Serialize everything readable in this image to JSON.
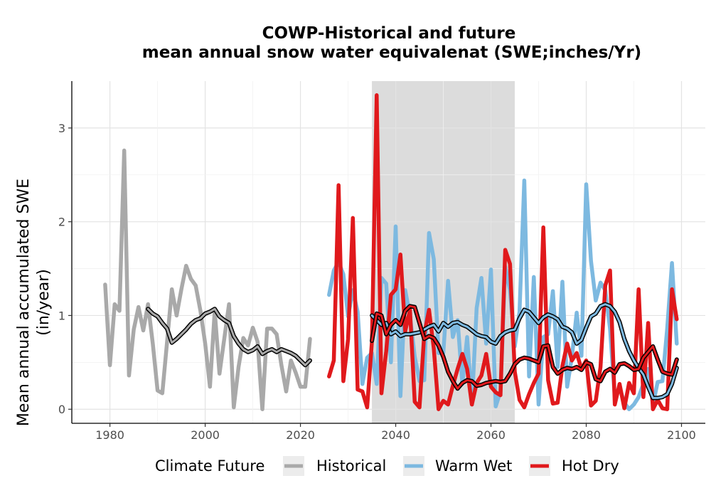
{
  "chart_data": {
    "type": "line",
    "title_line1": "COWP-Historical and future",
    "title_line2": "mean annual snow water equivalenat (SWE;inches/Yr)",
    "ylabel_line1": "Mean annual accumulated SWE",
    "ylabel_line2": "(in/year)",
    "xlim": [
      1972,
      2105
    ],
    "ylim": [
      -0.15,
      3.5
    ],
    "xticks": [
      1980,
      2000,
      2020,
      2040,
      2060,
      2080,
      2100
    ],
    "yticks": [
      0,
      1,
      2,
      3
    ],
    "grid": true,
    "shaded_period": [
      2035,
      2065
    ],
    "shade_color": "#dcdcdc",
    "legend": {
      "title": "Climate Future",
      "position": "bottom",
      "entries": [
        "Historical",
        "Warm Wet",
        "Hot Dry"
      ]
    },
    "series": [
      {
        "name": "Historical",
        "color": "#a9a9a9",
        "x": [
          1979,
          1980,
          1981,
          1982,
          1983,
          1984,
          1985,
          1986,
          1987,
          1988,
          1989,
          1990,
          1991,
          1992,
          1993,
          1994,
          1995,
          1996,
          1997,
          1998,
          1999,
          2000,
          2001,
          2002,
          2003,
          2004,
          2005,
          2006,
          2007,
          2008,
          2009,
          2010,
          2011,
          2012,
          2013,
          2014,
          2015,
          2016,
          2017,
          2018,
          2019,
          2020,
          2021,
          2022
        ],
        "values": [
          1.33,
          0.47,
          1.12,
          1.05,
          2.76,
          0.36,
          0.85,
          1.09,
          0.84,
          1.12,
          0.7,
          0.2,
          0.17,
          0.72,
          1.28,
          1.0,
          1.28,
          1.53,
          1.39,
          1.32,
          1.05,
          0.7,
          0.24,
          1.05,
          0.38,
          0.75,
          1.12,
          0.02,
          0.45,
          0.76,
          0.68,
          0.87,
          0.72,
          0.0,
          0.86,
          0.86,
          0.8,
          0.47,
          0.19,
          0.52,
          0.39,
          0.24,
          0.24,
          0.75
        ]
      },
      {
        "name": "Historical smooth",
        "color": "#a9a9a9",
        "x": [
          1988,
          1989,
          1990,
          1991,
          1992,
          1993,
          1994,
          1995,
          1996,
          1997,
          1998,
          1999,
          2000,
          2001,
          2002,
          2003,
          2004,
          2005,
          2006,
          2007,
          2008,
          2009,
          2010,
          2011,
          2012,
          2013,
          2014,
          2015,
          2016,
          2017,
          2018,
          2019,
          2020,
          2021,
          2022
        ],
        "values": [
          1.07,
          1.02,
          0.99,
          0.92,
          0.86,
          0.71,
          0.75,
          0.8,
          0.85,
          0.91,
          0.95,
          0.97,
          1.02,
          1.04,
          1.07,
          0.99,
          0.95,
          0.92,
          0.78,
          0.7,
          0.64,
          0.61,
          0.63,
          0.67,
          0.59,
          0.62,
          0.64,
          0.61,
          0.64,
          0.62,
          0.6,
          0.57,
          0.52,
          0.47,
          0.52
        ]
      },
      {
        "name": "Warm Wet",
        "color": "#7db9e0",
        "x": [
          2026,
          2027,
          2028,
          2029,
          2030,
          2031,
          2032,
          2033,
          2034,
          2035,
          2036,
          2037,
          2038,
          2039,
          2040,
          2041,
          2042,
          2043,
          2044,
          2045,
          2046,
          2047,
          2048,
          2049,
          2050,
          2051,
          2052,
          2053,
          2054,
          2055,
          2056,
          2057,
          2058,
          2059,
          2060,
          2061,
          2062,
          2063,
          2064,
          2065,
          2066,
          2067,
          2068,
          2069,
          2070,
          2071,
          2072,
          2073,
          2074,
          2075,
          2076,
          2077,
          2078,
          2079,
          2080,
          2081,
          2082,
          2083,
          2084,
          2085,
          2086,
          2087,
          2088,
          2089,
          2090,
          2091,
          2092,
          2093,
          2094,
          2095,
          2096,
          2097,
          2098,
          2099
        ],
        "values": [
          1.22,
          1.48,
          1.57,
          1.44,
          0.99,
          1.27,
          1.04,
          0.27,
          0.55,
          0.6,
          0.27,
          1.4,
          1.34,
          0.5,
          1.95,
          0.14,
          1.27,
          1.0,
          0.56,
          0.3,
          0.31,
          1.88,
          1.6,
          0.6,
          0.6,
          1.37,
          0.77,
          0.95,
          0.27,
          0.77,
          0.05,
          1.08,
          1.4,
          0.7,
          1.49,
          0.03,
          0.19,
          1.52,
          1.27,
          0.67,
          1.04,
          2.44,
          0.35,
          1.41,
          0.05,
          0.77,
          0.8,
          1.26,
          0.45,
          1.36,
          0.24,
          0.56,
          1.03,
          0.57,
          2.4,
          1.58,
          1.16,
          1.35,
          1.27,
          0.86,
          0.13,
          0.23,
          0.07,
          0.0,
          0.05,
          0.13,
          0.27,
          0.43,
          0.05,
          0.29,
          0.3,
          0.86,
          1.56,
          0.7
        ]
      },
      {
        "name": "Warm Wet smooth",
        "color": "#7db9e0",
        "x": [
          2035,
          2036,
          2037,
          2038,
          2039,
          2040,
          2041,
          2042,
          2043,
          2044,
          2045,
          2046,
          2047,
          2048,
          2049,
          2050,
          2051,
          2052,
          2053,
          2054,
          2055,
          2056,
          2057,
          2058,
          2059,
          2060,
          2061,
          2062,
          2063,
          2064,
          2065,
          2066,
          2067,
          2068,
          2069,
          2070,
          2071,
          2072,
          2073,
          2074,
          2075,
          2076,
          2077,
          2078,
          2079,
          2080,
          2081,
          2082,
          2083,
          2084,
          2085,
          2086,
          2087,
          2088,
          2089,
          2090,
          2091,
          2092,
          2093,
          2094,
          2095,
          2096,
          2097,
          2098,
          2099
        ],
        "values": [
          1.0,
          0.95,
          0.9,
          0.92,
          0.8,
          0.83,
          0.78,
          0.8,
          0.8,
          0.81,
          0.82,
          0.85,
          0.88,
          0.9,
          0.83,
          0.92,
          0.88,
          0.92,
          0.93,
          0.9,
          0.88,
          0.84,
          0.8,
          0.78,
          0.77,
          0.72,
          0.7,
          0.78,
          0.82,
          0.84,
          0.85,
          0.97,
          1.06,
          1.04,
          0.98,
          0.92,
          0.98,
          1.01,
          0.99,
          0.96,
          0.88,
          0.86,
          0.82,
          0.7,
          0.74,
          0.87,
          0.99,
          1.02,
          1.1,
          1.12,
          1.1,
          1.04,
          0.93,
          0.75,
          0.62,
          0.52,
          0.44,
          0.37,
          0.24,
          0.12,
          0.12,
          0.13,
          0.16,
          0.27,
          0.44
        ]
      },
      {
        "name": "Hot Dry",
        "color": "#e0191c",
        "x": [
          2026,
          2027,
          2028,
          2029,
          2030,
          2031,
          2032,
          2033,
          2034,
          2035,
          2036,
          2037,
          2038,
          2039,
          2040,
          2041,
          2042,
          2043,
          2044,
          2045,
          2046,
          2047,
          2048,
          2049,
          2050,
          2051,
          2052,
          2053,
          2054,
          2055,
          2056,
          2057,
          2058,
          2059,
          2060,
          2061,
          2062,
          2063,
          2064,
          2065,
          2066,
          2067,
          2068,
          2069,
          2070,
          2071,
          2072,
          2073,
          2074,
          2075,
          2076,
          2077,
          2078,
          2079,
          2080,
          2081,
          2082,
          2083,
          2084,
          2085,
          2086,
          2087,
          2088,
          2089,
          2090,
          2091,
          2092,
          2093,
          2094,
          2095,
          2096,
          2097,
          2098,
          2099
        ],
        "values": [
          0.35,
          0.52,
          2.39,
          0.3,
          0.75,
          2.04,
          0.21,
          0.19,
          0.02,
          0.72,
          3.35,
          0.17,
          0.62,
          1.22,
          1.28,
          1.65,
          0.83,
          1.06,
          0.08,
          0.02,
          0.8,
          1.06,
          0.65,
          0.0,
          0.09,
          0.05,
          0.25,
          0.43,
          0.59,
          0.43,
          0.05,
          0.28,
          0.36,
          0.59,
          0.24,
          0.18,
          0.15,
          1.7,
          1.55,
          0.4,
          0.1,
          0.02,
          0.16,
          0.28,
          0.38,
          1.94,
          0.31,
          0.06,
          0.07,
          0.46,
          0.7,
          0.52,
          0.6,
          0.43,
          0.52,
          0.04,
          0.09,
          0.45,
          1.32,
          1.48,
          0.05,
          0.27,
          0.01,
          0.28,
          0.17,
          1.28,
          0.13,
          0.92,
          0.0,
          0.1,
          0.01,
          0.0,
          1.28,
          0.96
        ]
      },
      {
        "name": "Hot Dry smooth",
        "color": "#e0191c",
        "x": [
          2035,
          2036,
          2037,
          2038,
          2039,
          2040,
          2041,
          2042,
          2043,
          2044,
          2045,
          2046,
          2047,
          2048,
          2049,
          2050,
          2051,
          2052,
          2053,
          2054,
          2055,
          2056,
          2057,
          2058,
          2059,
          2060,
          2061,
          2062,
          2063,
          2064,
          2065,
          2066,
          2067,
          2068,
          2069,
          2070,
          2071,
          2072,
          2073,
          2074,
          2075,
          2076,
          2077,
          2078,
          2079,
          2080,
          2081,
          2082,
          2083,
          2084,
          2085,
          2086,
          2087,
          2088,
          2089,
          2090,
          2091,
          2092,
          2093,
          2094,
          2095,
          2096,
          2097,
          2098,
          2099
        ],
        "values": [
          0.73,
          1.02,
          1.0,
          0.8,
          0.9,
          0.95,
          0.9,
          1.05,
          1.1,
          1.09,
          0.92,
          0.75,
          0.78,
          0.76,
          0.68,
          0.56,
          0.4,
          0.3,
          0.22,
          0.28,
          0.31,
          0.3,
          0.25,
          0.26,
          0.28,
          0.29,
          0.3,
          0.29,
          0.3,
          0.38,
          0.48,
          0.53,
          0.55,
          0.54,
          0.52,
          0.5,
          0.67,
          0.68,
          0.45,
          0.38,
          0.42,
          0.44,
          0.43,
          0.45,
          0.42,
          0.5,
          0.48,
          0.32,
          0.3,
          0.4,
          0.43,
          0.39,
          0.48,
          0.49,
          0.46,
          0.42,
          0.43,
          0.55,
          0.61,
          0.67,
          0.53,
          0.4,
          0.38,
          0.37,
          0.53
        ]
      }
    ]
  }
}
